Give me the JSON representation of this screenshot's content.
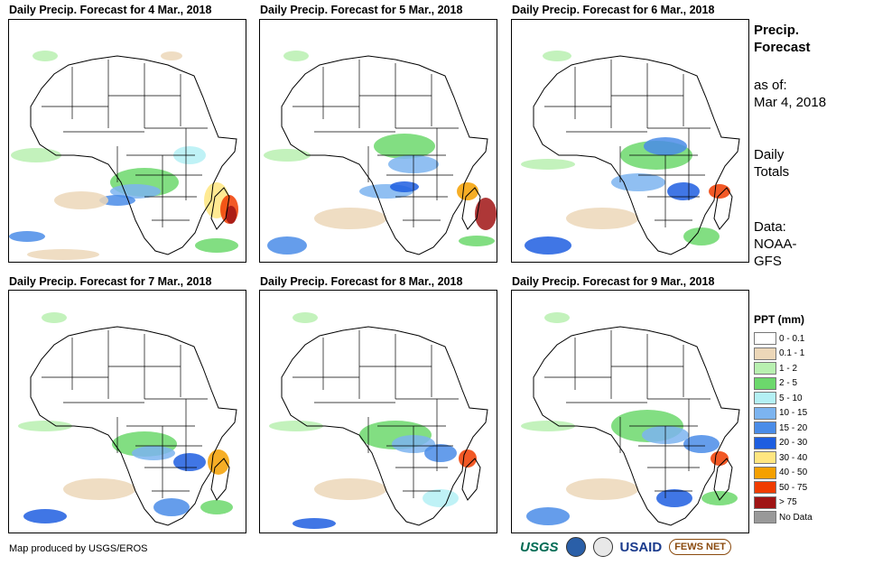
{
  "panels": [
    {
      "title": "Daily Precip. Forecast for 4 Mar., 2018"
    },
    {
      "title": "Daily Precip. Forecast for 5 Mar., 2018"
    },
    {
      "title": "Daily Precip. Forecast for 6 Mar., 2018"
    },
    {
      "title": "Daily Precip. Forecast for 7 Mar., 2018"
    },
    {
      "title": "Daily Precip. Forecast for 8 Mar., 2018"
    },
    {
      "title": "Daily Precip. Forecast for 9 Mar., 2018"
    }
  ],
  "sidebar": {
    "title_line1": "Precip.",
    "title_line2": "Forecast",
    "asof_label": "as of:",
    "asof_date": "Mar 4, 2018",
    "totals_line1": "Daily",
    "totals_line2": "Totals",
    "data_line1": "Data:",
    "data_line2": "NOAA-",
    "data_line3": "GFS"
  },
  "legend": {
    "title": "PPT (mm)",
    "items": [
      {
        "label": "0 - 0.1",
        "color": "#ffffff"
      },
      {
        "label": "0.1 - 1",
        "color": "#ecd7b8"
      },
      {
        "label": "1 - 2",
        "color": "#b8f0b0"
      },
      {
        "label": "2 - 5",
        "color": "#6cd86c"
      },
      {
        "label": "5 - 10",
        "color": "#b4f0f4"
      },
      {
        "label": "10 - 15",
        "color": "#7cb4f0"
      },
      {
        "label": "15 - 20",
        "color": "#4a8ce8"
      },
      {
        "label": "20 - 30",
        "color": "#1e5ee0"
      },
      {
        "label": "30 - 40",
        "color": "#ffe680"
      },
      {
        "label": "40 - 50",
        "color": "#f5a000"
      },
      {
        "label": "50 - 75",
        "color": "#f03c00"
      },
      {
        "label": "> 75",
        "color": "#a01414"
      },
      {
        "label": "No Data",
        "color": "#999999"
      }
    ]
  },
  "footer": {
    "credit": "Map produced by USGS/EROS",
    "logo_usgs": "USGS",
    "logo_usaid": "USAID",
    "logo_fews": "FEWS NET"
  }
}
